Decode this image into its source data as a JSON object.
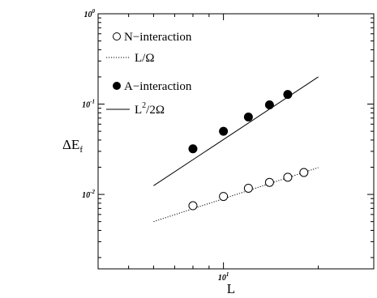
{
  "chart_data": {
    "type": "scatter",
    "x_scale": "log",
    "y_scale": "log",
    "xlim": [
      4,
      30
    ],
    "ylim": [
      0.0015,
      1
    ],
    "xlabel": "L",
    "ylabel": "ΔE",
    "ylabel_sub": "f",
    "x_ticks": [
      {
        "value": 10,
        "mantissa": "10",
        "exp": "1"
      }
    ],
    "y_ticks": [
      {
        "value": 0.01,
        "mantissa": "10",
        "exp": "-2"
      },
      {
        "value": 0.1,
        "mantissa": "10",
        "exp": "-1"
      },
      {
        "value": 1,
        "mantissa": "10",
        "exp": "0"
      }
    ],
    "series": [
      {
        "name": "N−interaction",
        "kind": "points",
        "marker": "open-circle",
        "x": [
          8,
          10,
          12,
          14,
          16,
          18
        ],
        "y": [
          0.0075,
          0.0095,
          0.0117,
          0.0136,
          0.0155,
          0.0175
        ]
      },
      {
        "name": "L/Ω",
        "kind": "line",
        "style": "dotted",
        "x": [
          6,
          20
        ],
        "y": [
          0.005,
          0.0198
        ]
      },
      {
        "name": "A−interaction",
        "kind": "points",
        "marker": "filled-circle",
        "x": [
          8,
          10,
          12,
          14,
          16
        ],
        "y": [
          0.032,
          0.05,
          0.072,
          0.098,
          0.128
        ]
      },
      {
        "name": "L",
        "name_sup": "2",
        "name_tail": "/2Ω",
        "kind": "line",
        "style": "solid",
        "x": [
          6,
          20
        ],
        "y": [
          0.0125,
          0.2
        ]
      }
    ],
    "legend": "top-left",
    "grid": false
  }
}
